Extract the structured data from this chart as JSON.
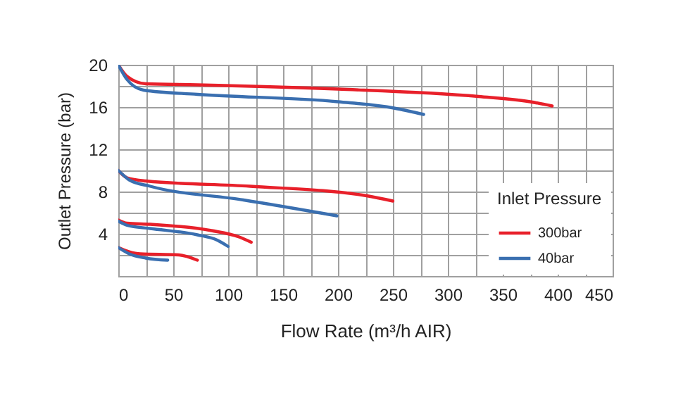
{
  "chart_data": {
    "type": "line",
    "xlabel": "Flow Rate (m³/h AIR)",
    "ylabel": "Outlet Pressure (bar)",
    "legend_title": "Inlet Pressure",
    "legend": "bottom right",
    "grid": true,
    "xlim": [
      0,
      450
    ],
    "ylim": [
      0,
      20
    ],
    "xticks": [
      0,
      {
        "value": 25,
        "label": null
      },
      50,
      {
        "value": 75,
        "label": null
      },
      100,
      {
        "value": 125,
        "label": null
      },
      150,
      {
        "value": 175,
        "label": null
      },
      200,
      {
        "value": 225,
        "label": null
      },
      250,
      {
        "value": 275,
        "label": null
      },
      300,
      {
        "value": 325,
        "label": null
      },
      350,
      {
        "value": 375,
        "label": null
      },
      400,
      {
        "value": 425,
        "label": null
      },
      450
    ],
    "yticks": [
      {
        "value": 0,
        "label": null
      },
      {
        "value": 2,
        "label": null
      },
      4,
      {
        "value": 6,
        "label": null
      },
      8,
      {
        "value": 10,
        "label": null
      },
      12,
      {
        "value": 14,
        "label": null
      },
      16,
      {
        "value": 18,
        "label": null
      },
      20
    ],
    "series": [
      {
        "name": "300bar",
        "color": "#e8202a",
        "x": [
          0,
          8,
          25,
          72,
          200,
          328,
          375,
          395
        ],
        "values": [
          20,
          18.9,
          18.2,
          18.1,
          17.7,
          17.0,
          16.5,
          16.1
        ]
      },
      {
        "name": "40bar",
        "color": "#3a6fb0",
        "x": [
          0,
          8,
          23,
          72,
          200,
          251,
          278
        ],
        "values": [
          20,
          18.6,
          17.6,
          17.2,
          16.5,
          15.9,
          15.3
        ]
      },
      {
        "color": "#e8202a",
        "x": [
          0,
          8,
          25,
          120,
          226,
          250
        ],
        "values": [
          10,
          9.3,
          9.0,
          8.5,
          7.6,
          7.1
        ]
      },
      {
        "color": "#3a6fb0",
        "x": [
          0,
          10,
          29,
          114,
          199
        ],
        "values": [
          10,
          9.1,
          8.5,
          7.2,
          5.7
        ]
      },
      {
        "color": "#e8202a",
        "x": [
          0,
          8,
          29,
          85,
          110,
          121
        ],
        "values": [
          5.3,
          5.0,
          4.9,
          4.3,
          3.7,
          3.2
        ]
      },
      {
        "color": "#3a6fb0",
        "x": [
          0,
          8,
          29,
          72,
          90,
          100
        ],
        "values": [
          5.2,
          4.8,
          4.5,
          3.9,
          3.4,
          2.8
        ]
      },
      {
        "color": "#e8202a",
        "x": [
          0,
          10,
          20,
          55,
          72
        ],
        "values": [
          2.7,
          2.3,
          2.1,
          2.0,
          1.5
        ]
      },
      {
        "color": "#3a6fb0",
        "x": [
          0,
          10,
          25,
          45
        ],
        "values": [
          2.7,
          2.1,
          1.7,
          1.5
        ]
      }
    ]
  }
}
